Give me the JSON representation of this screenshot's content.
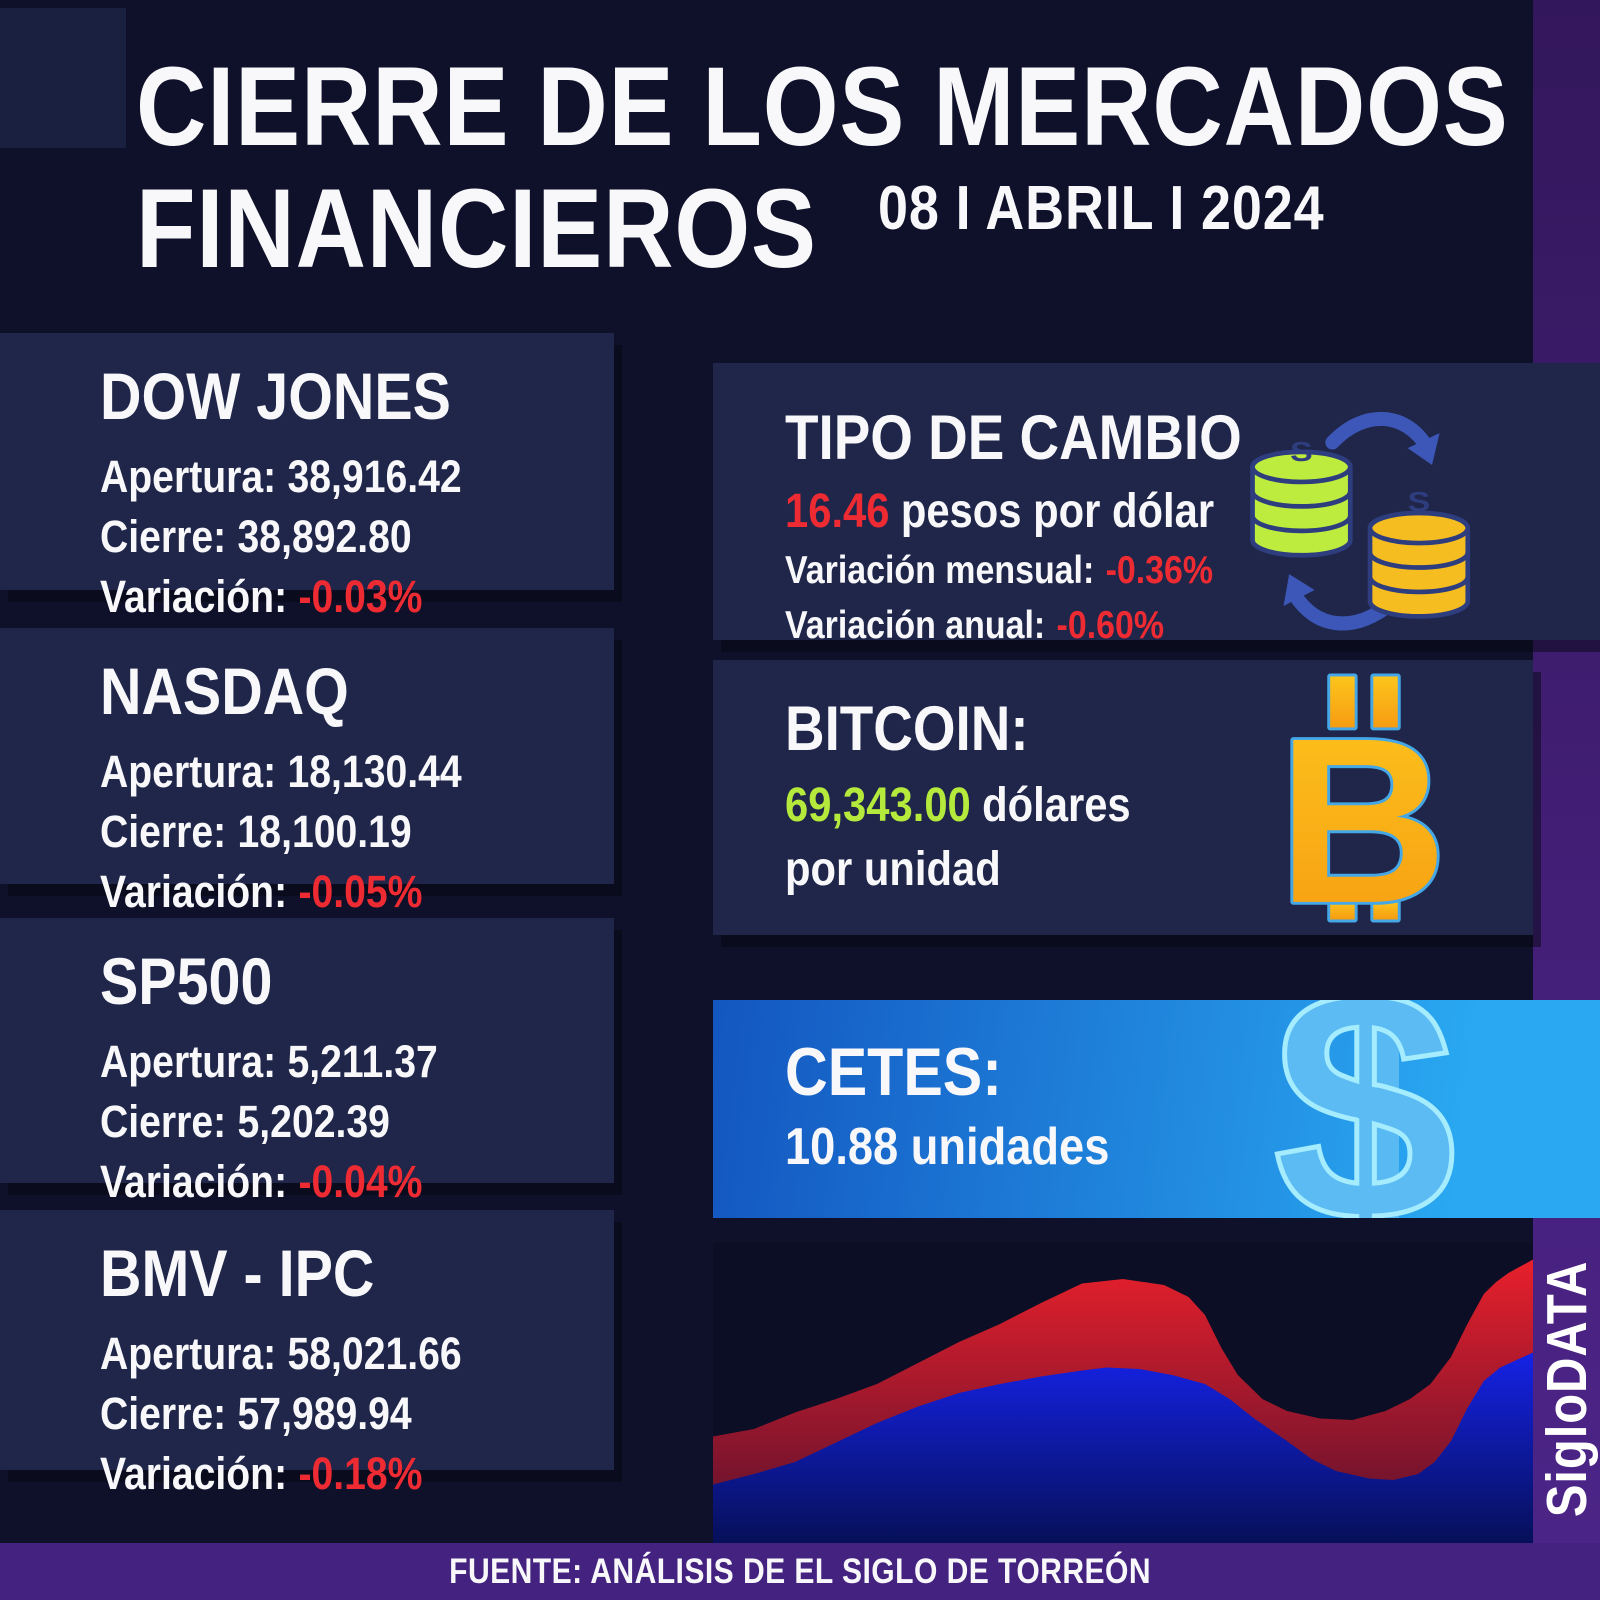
{
  "page": {
    "title_line1": "CIERRE DE LOS MERCADOS",
    "title_line2": "FINANCIEROS",
    "date": "08 I ABRIL I 2024"
  },
  "indices": [
    {
      "name": "DOW JONES",
      "apertura_label": "Apertura:",
      "apertura_value": "38,916.42",
      "cierre_label": "Cierre:",
      "cierre_value": "38,892.80",
      "variacion_label": "Variación:",
      "variacion_value": "-0.03%"
    },
    {
      "name": "NASDAQ",
      "apertura_label": "Apertura:",
      "apertura_value": "18,130.44",
      "cierre_label": "Cierre:",
      "cierre_value": "18,100.19",
      "variacion_label": "Variación:",
      "variacion_value": "-0.05%"
    },
    {
      "name": "SP500",
      "apertura_label": "Apertura:",
      "apertura_value": "5,211.37",
      "cierre_label": "Cierre:",
      "cierre_value": "5,202.39",
      "variacion_label": "Variación:",
      "variacion_value": "-0.04%"
    },
    {
      "name": "BMV - IPC",
      "apertura_label": "Apertura:",
      "apertura_value": "58,021.66",
      "cierre_label": "Cierre:",
      "cierre_value": "57,989.94",
      "variacion_label": "Variación:",
      "variacion_value": "-0.18%"
    }
  ],
  "exchange": {
    "title": "TIPO DE CAMBIO",
    "rate_value": "16.46",
    "rate_unit": "pesos por dólar",
    "monthly_label": "Variación mensual:",
    "monthly_value": "-0.36%",
    "annual_label": "Variación anual:",
    "annual_value": "-0.60%",
    "coin_symbol": "S"
  },
  "bitcoin": {
    "title": "BITCOIN:",
    "price_value": "69,343.00",
    "price_unit": "dólares",
    "price_line2": "por unidad",
    "icon_glyph": "B"
  },
  "cetes": {
    "title": "CETES:",
    "value": "10.88 unidades",
    "icon_glyph": "$"
  },
  "branding": {
    "vertical_label": "SigloDATA"
  },
  "footer": {
    "source": "FUENTE: ANÁLISIS DE EL SIGLO DE TORREÓN"
  },
  "colors": {
    "background": "#0e1129",
    "panel_navy": "#1f2649",
    "negative_red": "#ee2b33",
    "bitcoin_lime": "#b5ea3c",
    "purple_strip": "#45207c",
    "footer_purple": "#44227f",
    "cetes_gradient_start": "#1356c0",
    "cetes_gradient_end": "#2aa9f2",
    "bitcoin_orange": "#f9a81b",
    "icon_outline_blue": "#45a7e6",
    "arrow_blue": "#3c57b8",
    "coin_green": "#bdec3f",
    "coin_gold": "#f6bd20",
    "chart_red": "#e8202b",
    "chart_blue": "#1522e6",
    "dollar_light_blue": "#5cbbf2"
  },
  "chart_data": {
    "type": "area",
    "title": "",
    "note": "decorative market-trend graphic at bottom right — no axes, tick labels or values are shown in the image",
    "x_normalized": true,
    "y_normalized_from_top": true,
    "series": [
      {
        "name": "red-area",
        "color": "#e8202b",
        "points_top_profile": [
          [
            0,
            0.645
          ],
          [
            0.05,
            0.62
          ],
          [
            0.1,
            0.565
          ],
          [
            0.15,
            0.52
          ],
          [
            0.2,
            0.47
          ],
          [
            0.25,
            0.4
          ],
          [
            0.3,
            0.33
          ],
          [
            0.35,
            0.27
          ],
          [
            0.4,
            0.2
          ],
          [
            0.45,
            0.135
          ],
          [
            0.5,
            0.12
          ],
          [
            0.55,
            0.14
          ],
          [
            0.58,
            0.18
          ],
          [
            0.6,
            0.24
          ],
          [
            0.62,
            0.35
          ],
          [
            0.64,
            0.44
          ],
          [
            0.67,
            0.52
          ],
          [
            0.7,
            0.56
          ],
          [
            0.74,
            0.585
          ],
          [
            0.78,
            0.59
          ],
          [
            0.82,
            0.56
          ],
          [
            0.85,
            0.52
          ],
          [
            0.875,
            0.47
          ],
          [
            0.9,
            0.38
          ],
          [
            0.92,
            0.27
          ],
          [
            0.94,
            0.17
          ],
          [
            0.955,
            0.13
          ],
          [
            0.97,
            0.1
          ],
          [
            1,
            0.055
          ]
        ]
      },
      {
        "name": "blue-area",
        "color": "#1522e6",
        "points_top_profile": [
          [
            0,
            0.805
          ],
          [
            0.05,
            0.77
          ],
          [
            0.1,
            0.73
          ],
          [
            0.15,
            0.665
          ],
          [
            0.2,
            0.6
          ],
          [
            0.25,
            0.545
          ],
          [
            0.3,
            0.5
          ],
          [
            0.35,
            0.47
          ],
          [
            0.4,
            0.445
          ],
          [
            0.45,
            0.425
          ],
          [
            0.48,
            0.415
          ],
          [
            0.52,
            0.42
          ],
          [
            0.56,
            0.44
          ],
          [
            0.6,
            0.47
          ],
          [
            0.63,
            0.52
          ],
          [
            0.66,
            0.585
          ],
          [
            0.7,
            0.66
          ],
          [
            0.73,
            0.72
          ],
          [
            0.76,
            0.76
          ],
          [
            0.8,
            0.785
          ],
          [
            0.83,
            0.79
          ],
          [
            0.86,
            0.77
          ],
          [
            0.88,
            0.73
          ],
          [
            0.9,
            0.66
          ],
          [
            0.92,
            0.55
          ],
          [
            0.94,
            0.46
          ],
          [
            0.96,
            0.415
          ],
          [
            0.98,
            0.39
          ],
          [
            1,
            0.365
          ]
        ]
      }
    ]
  }
}
